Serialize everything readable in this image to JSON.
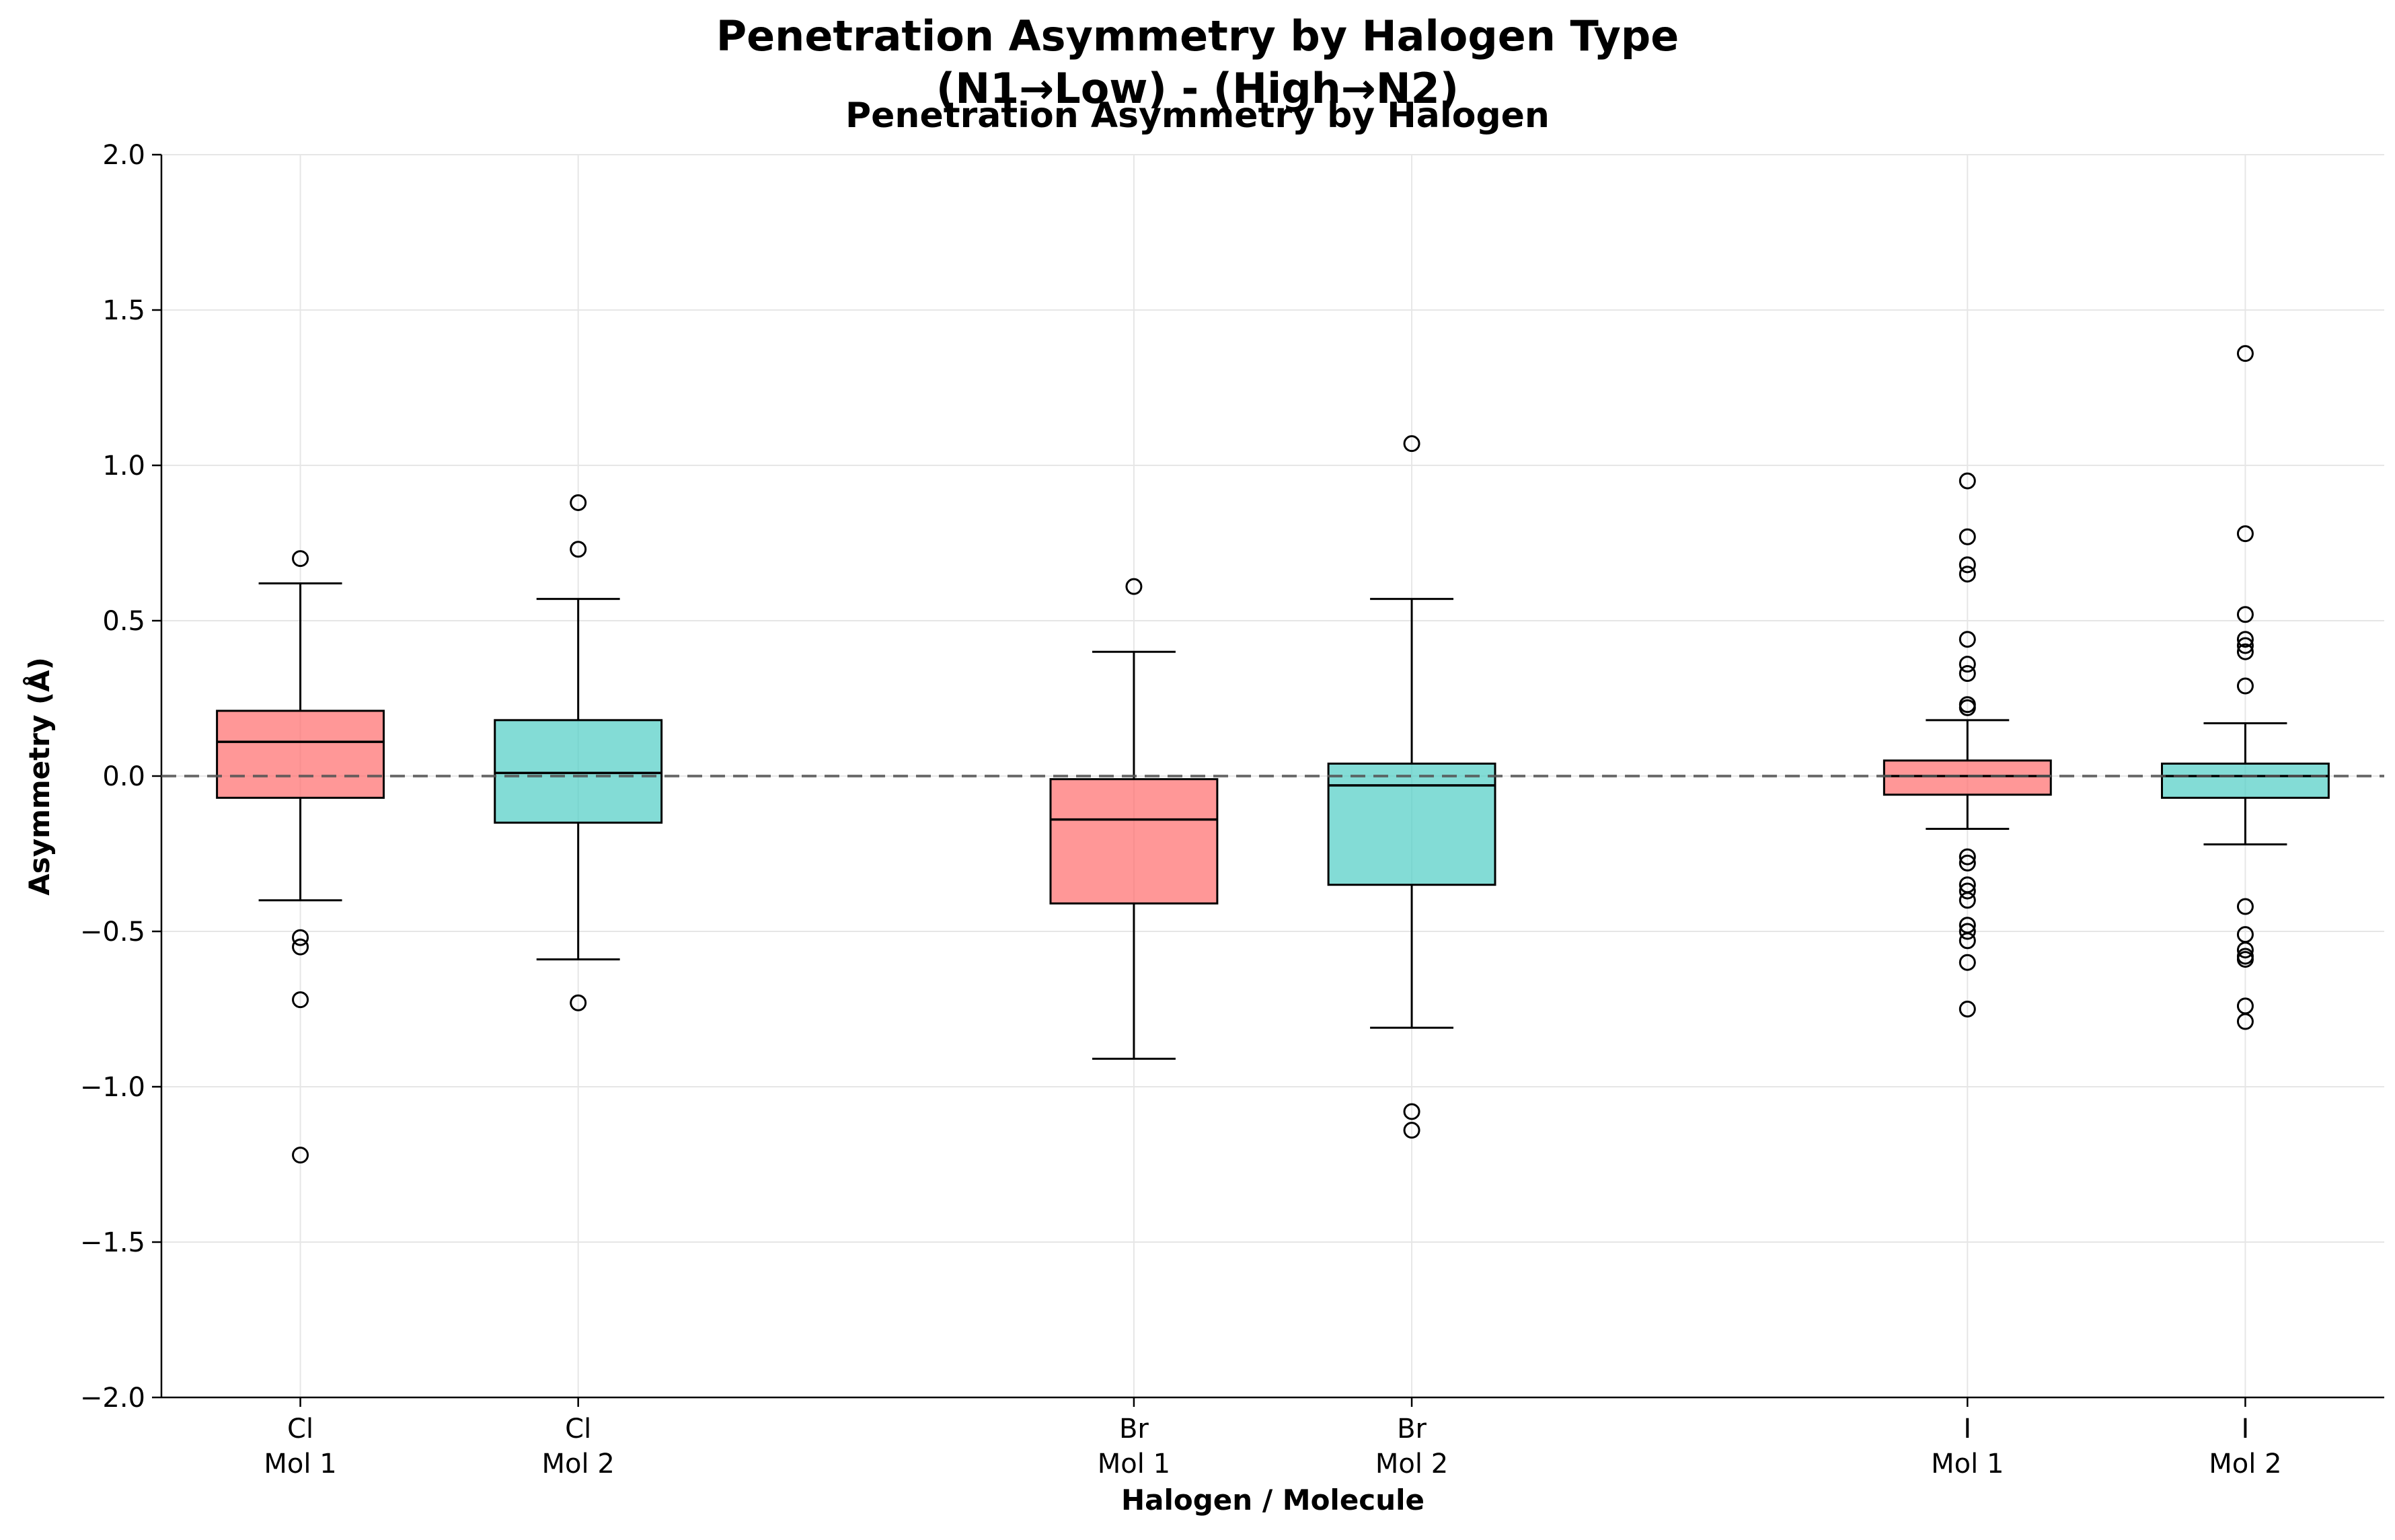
{
  "chart_data": {
    "type": "box",
    "title_line1": "Penetration Asymmetry by Halogen Type",
    "title_line2": "(N1→Low) - (High→N2)",
    "subtitle": "Penetration Asymmetry by Halogen",
    "xlabel": "Halogen / Molecule",
    "ylabel": "Asymmetry (Å)",
    "ylim": [
      -2.0,
      2.0
    ],
    "yticks": [
      -2.0,
      -1.5,
      -1.0,
      -0.5,
      0.0,
      0.5,
      1.0,
      1.5,
      2.0
    ],
    "ytick_labels": [
      "−2.0",
      "−1.5",
      "−1.0",
      "−0.5",
      "0.0",
      "0.5",
      "1.0",
      "1.5",
      "2.0"
    ],
    "grid": true,
    "reference_line": 0.0,
    "colors": {
      "Mol 1": "#FF6B6B",
      "Mol 2": "#4ECDC4"
    },
    "boxes": [
      {
        "halogen": "Cl",
        "molecule": "Mol 1",
        "position": 1,
        "whisker_low": -0.4,
        "q1": -0.07,
        "median": 0.11,
        "q3": 0.21,
        "whisker_high": 0.62,
        "outliers": [
          0.7,
          -0.52,
          -0.55,
          -0.72,
          -1.22
        ]
      },
      {
        "halogen": "Cl",
        "molecule": "Mol 2",
        "position": 2,
        "whisker_low": -0.59,
        "q1": -0.15,
        "median": 0.01,
        "q3": 0.18,
        "whisker_high": 0.57,
        "outliers": [
          0.88,
          0.73,
          -0.73
        ]
      },
      {
        "halogen": "Br",
        "molecule": "Mol 1",
        "position": 4,
        "whisker_low": -0.91,
        "q1": -0.41,
        "median": -0.14,
        "q3": -0.01,
        "whisker_high": 0.4,
        "outliers": [
          0.61
        ]
      },
      {
        "halogen": "Br",
        "molecule": "Mol 2",
        "position": 5,
        "whisker_low": -0.81,
        "q1": -0.35,
        "median": -0.03,
        "q3": 0.04,
        "whisker_high": 0.57,
        "outliers": [
          1.07,
          -1.08,
          -1.14
        ]
      },
      {
        "halogen": "I",
        "molecule": "Mol 1",
        "position": 7,
        "whisker_low": -0.17,
        "q1": -0.06,
        "median": 0.0,
        "q3": 0.05,
        "whisker_high": 0.18,
        "outliers": [
          0.95,
          0.77,
          0.68,
          0.65,
          0.44,
          0.36,
          0.33,
          0.23,
          0.22,
          -0.26,
          -0.28,
          -0.35,
          -0.37,
          -0.4,
          -0.48,
          -0.5,
          -0.53,
          -0.6,
          -0.75
        ]
      },
      {
        "halogen": "I",
        "molecule": "Mol 2",
        "position": 8,
        "whisker_low": -0.22,
        "q1": -0.07,
        "median": 0.0,
        "q3": 0.04,
        "whisker_high": 0.17,
        "outliers": [
          1.36,
          0.78,
          0.52,
          0.44,
          0.42,
          0.4,
          0.29,
          -0.42,
          -0.51,
          -0.56,
          -0.58,
          -0.59,
          -0.74,
          -0.79
        ]
      }
    ]
  }
}
